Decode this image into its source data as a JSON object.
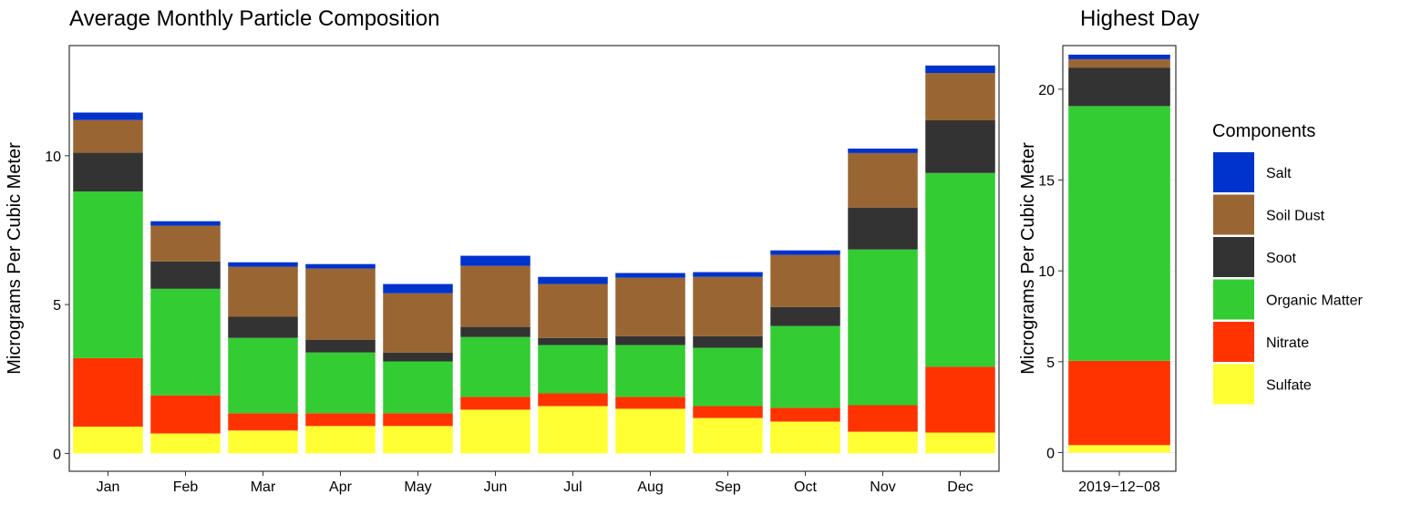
{
  "chart_data": [
    {
      "type": "bar",
      "stacked": true,
      "title": "Average Monthly Particle Composition",
      "y_label": "Micrograms Per Cubic Meter",
      "categories": [
        "Jan",
        "Feb",
        "Mar",
        "Apr",
        "May",
        "Jun",
        "Jul",
        "Aug",
        "Sep",
        "Oct",
        "Nov",
        "Dec"
      ],
      "series": [
        {
          "values": [
            0.9,
            0.67,
            0.77,
            0.92,
            0.92,
            1.47,
            1.59,
            1.5,
            1.19,
            1.07,
            0.73,
            0.7
          ]
        },
        {
          "values": [
            2.3,
            1.28,
            0.58,
            0.43,
            0.43,
            0.43,
            0.43,
            0.4,
            0.4,
            0.46,
            0.89,
            2.21
          ]
        },
        {
          "values": [
            5.6,
            3.58,
            2.53,
            2.04,
            1.74,
            2.01,
            1.62,
            1.74,
            1.96,
            2.75,
            5.23,
            6.51
          ]
        },
        {
          "values": [
            1.3,
            0.92,
            0.71,
            0.43,
            0.3,
            0.34,
            0.24,
            0.3,
            0.39,
            0.64,
            1.41,
            1.77
          ]
        },
        {
          "values": [
            1.1,
            1.2,
            1.68,
            2.39,
            1.99,
            2.05,
            1.81,
            1.96,
            1.99,
            1.75,
            1.83,
            1.59
          ]
        },
        {
          "values": [
            0.25,
            0.15,
            0.15,
            0.15,
            0.31,
            0.34,
            0.24,
            0.16,
            0.16,
            0.15,
            0.15,
            0.25
          ]
        }
      ],
      "ylim": [
        -0.6,
        13.7
      ],
      "yticks": [
        0,
        5,
        10
      ],
      "grid": false
    },
    {
      "type": "bar",
      "stacked": true,
      "title": "Highest Day",
      "y_label": "Micrograms Per Cubic Meter",
      "categories": [
        "2019−12−08"
      ],
      "series": [
        {
          "values": [
            0.41
          ]
        },
        {
          "values": [
            4.64
          ]
        },
        {
          "values": [
            14.02
          ]
        },
        {
          "values": [
            2.12
          ]
        },
        {
          "values": [
            0.46
          ]
        },
        {
          "values": [
            0.25
          ]
        }
      ],
      "ylim": [
        -1.03,
        22.4
      ],
      "yticks": [
        0,
        5,
        10,
        15,
        20
      ],
      "grid": true
    }
  ],
  "legend": {
    "title": "Components",
    "items": [
      {
        "name": "Sulfate",
        "color": "#ffff33"
      },
      {
        "name": "Nitrate",
        "color": "#ff3300"
      },
      {
        "name": "Organic Matter",
        "color": "#33cc33"
      },
      {
        "name": "Soot",
        "color": "#333333"
      },
      {
        "name": "Soil Dust",
        "color": "#996633"
      },
      {
        "name": "Salt",
        "color": "#0033cc"
      }
    ]
  }
}
